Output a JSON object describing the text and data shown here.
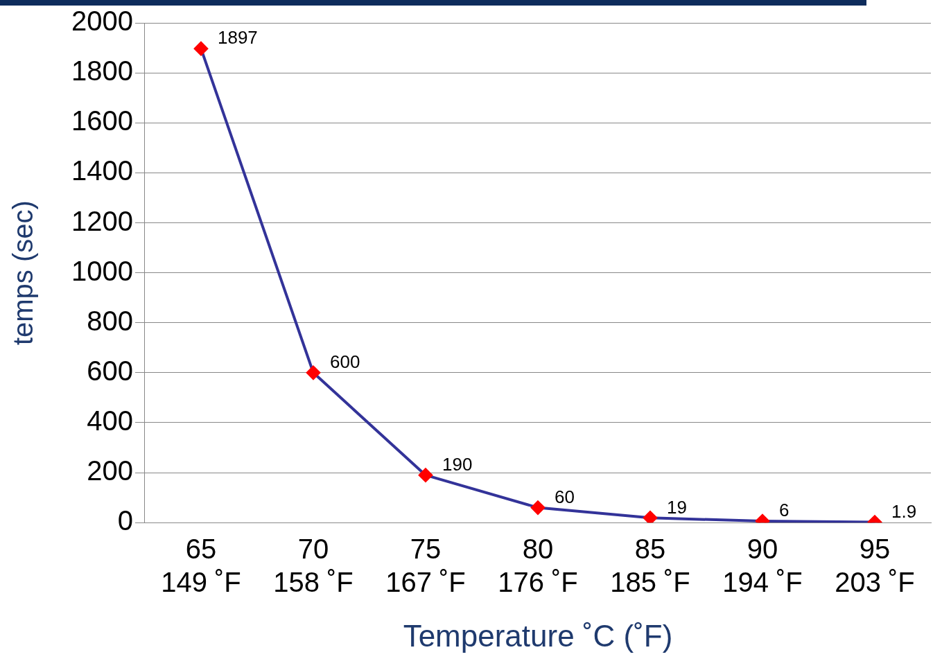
{
  "chart_data": {
    "type": "line",
    "xlabel": "Temperature ˚C (˚F)",
    "ylabel": "temps (sec)",
    "categories": [
      "65\n149 ˚F",
      "70\n158 ˚F",
      "75\n167 ˚F",
      "80\n176 ˚F",
      "85\n185 ˚F",
      "90\n194 ˚F",
      "95\n203 ˚F"
    ],
    "series": [
      {
        "color": "#333399",
        "values": [
          1897,
          600,
          190,
          60,
          19,
          6,
          1.9
        ]
      }
    ],
    "ylim": [
      0,
      2000
    ],
    "yticks": [
      0,
      200,
      400,
      600,
      800,
      1000,
      1200,
      1400,
      1600,
      1800,
      2000
    ],
    "grid": "y",
    "legend": false,
    "marker": "diamond",
    "data_labels": true
  }
}
